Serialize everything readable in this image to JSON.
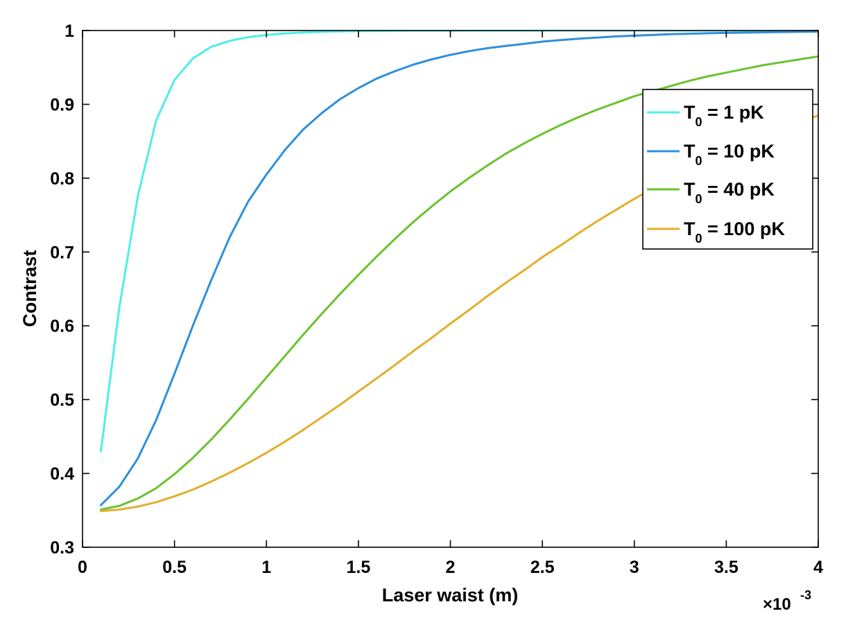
{
  "chart_data": {
    "type": "line",
    "xlabel": "Laser waist (m)",
    "ylabel": "Contrast",
    "x_multiplier": "×10",
    "x_exponent": "-3",
    "xlim": [
      0,
      4
    ],
    "ylim": [
      0.3,
      1
    ],
    "xticks": [
      "0",
      "0.5",
      "1",
      "1.5",
      "2",
      "2.5",
      "3",
      "3.5",
      "4"
    ],
    "yticks": [
      "0.3",
      "0.4",
      "0.5",
      "0.6",
      "0.7",
      "0.8",
      "0.9",
      "1"
    ],
    "grid": false,
    "legend_position": "top-right",
    "x": [
      0.1,
      0.2,
      0.3,
      0.4,
      0.5,
      0.6,
      0.7,
      0.8,
      0.9,
      1.0,
      1.1,
      1.2,
      1.3,
      1.4,
      1.5,
      1.6,
      1.7,
      1.8,
      1.9,
      2.0,
      2.1,
      2.2,
      2.3,
      2.4,
      2.5,
      2.6,
      2.7,
      2.8,
      2.9,
      3.0,
      3.1,
      3.2,
      3.3,
      3.4,
      3.5,
      3.6,
      3.7,
      3.8,
      3.9,
      4.0
    ],
    "series": [
      {
        "label_main": "T",
        "label_sub": "0",
        "label_rest": " = 1 pK",
        "color": "#4deeea",
        "values": [
          0.43,
          0.625,
          0.775,
          0.878,
          0.933,
          0.962,
          0.978,
          0.986,
          0.991,
          0.994,
          0.996,
          0.9973,
          0.9982,
          0.9988,
          0.9992,
          0.9994,
          0.9996,
          0.9997,
          0.9998,
          0.9998,
          0.9999,
          0.9999,
          0.9999,
          0.9999,
          0.9999,
          1,
          1,
          1,
          1,
          1,
          1,
          1,
          1,
          1,
          1,
          1,
          1,
          1,
          1,
          1
        ]
      },
      {
        "label_main": "T",
        "label_sub": "0",
        "label_rest": " = 10 pK",
        "color": "#2e8fdc",
        "values": [
          0.357,
          0.382,
          0.42,
          0.472,
          0.535,
          0.6,
          0.662,
          0.72,
          0.768,
          0.805,
          0.838,
          0.866,
          0.888,
          0.907,
          0.922,
          0.935,
          0.945,
          0.954,
          0.961,
          0.967,
          0.972,
          0.976,
          0.979,
          0.982,
          0.985,
          0.987,
          0.989,
          0.9905,
          0.992,
          0.993,
          0.994,
          0.995,
          0.9957,
          0.9963,
          0.9968,
          0.9972,
          0.9976,
          0.9979,
          0.9982,
          0.9985
        ]
      },
      {
        "label_main": "T",
        "label_sub": "0",
        "label_rest": " = 40 pK",
        "color": "#6ac22d",
        "values": [
          0.351,
          0.356,
          0.366,
          0.38,
          0.399,
          0.421,
          0.446,
          0.473,
          0.501,
          0.53,
          0.559,
          0.588,
          0.616,
          0.643,
          0.669,
          0.694,
          0.718,
          0.741,
          0.762,
          0.782,
          0.8,
          0.817,
          0.833,
          0.847,
          0.86,
          0.872,
          0.883,
          0.893,
          0.902,
          0.911,
          0.918,
          0.925,
          0.932,
          0.938,
          0.943,
          0.948,
          0.953,
          0.957,
          0.961,
          0.965
        ]
      },
      {
        "label_main": "T",
        "label_sub": "0",
        "label_rest": " = 100 pK",
        "color": "#e3ae2a",
        "values": [
          0.349,
          0.351,
          0.355,
          0.361,
          0.369,
          0.378,
          0.389,
          0.401,
          0.414,
          0.428,
          0.443,
          0.459,
          0.476,
          0.493,
          0.511,
          0.529,
          0.547,
          0.566,
          0.584,
          0.603,
          0.621,
          0.64,
          0.658,
          0.675,
          0.693,
          0.709,
          0.726,
          0.742,
          0.757,
          0.772,
          0.786,
          0.799,
          0.812,
          0.824,
          0.836,
          0.847,
          0.857,
          0.867,
          0.876,
          0.885
        ]
      }
    ]
  }
}
